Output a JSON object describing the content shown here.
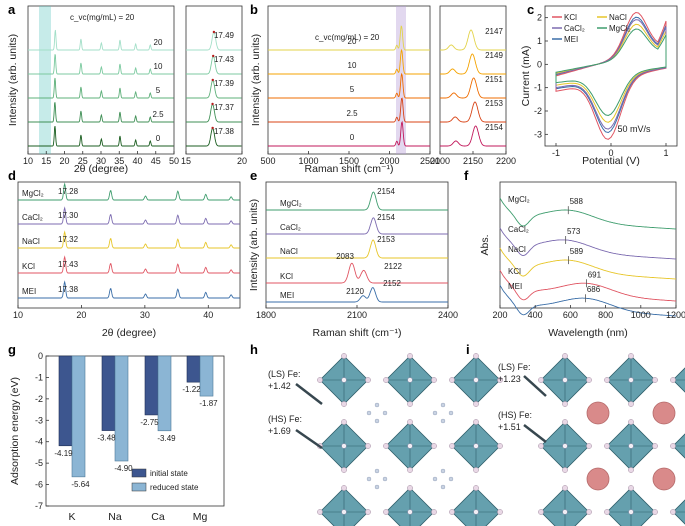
{
  "labels": {
    "a": "a",
    "b": "b",
    "c": "c",
    "d": "d",
    "e": "e",
    "f": "f",
    "g": "g",
    "h": "h",
    "i": "i"
  },
  "colors": {
    "a": [
      "#1b5e20",
      "#3f8f55",
      "#5eb07a",
      "#7ccaa0",
      "#a3dfc8"
    ],
    "b": [
      "#c2185b",
      "#d84315",
      "#ef6c00",
      "#f4a300",
      "#e3d34a"
    ],
    "salt": {
      "MEI": "#3a6ea8",
      "KCl": "#e05663",
      "NaCl": "#e7c62a",
      "CaCl2": "#7c6bb0",
      "MgCl2": "#3f9d6e"
    },
    "g_initial": "#3d568f",
    "g_reduced": "#8bb5d4",
    "octa": "#4a8fa0",
    "metal": "#d98a8a"
  },
  "chart_data": [
    {
      "panel": "a",
      "type": "line",
      "title": "",
      "xlabel": "2θ (degree)",
      "ylabel": "Intensity (arb. units)",
      "xlim": [
        10,
        50
      ],
      "xticks": [
        10,
        15,
        20,
        25,
        30,
        35,
        40,
        45,
        50
      ],
      "legend_title": "c_vc(mg/mL) = 20",
      "series": [
        {
          "name": "0",
          "peaks": [
            17.38,
            24.5,
            30.1,
            35.2,
            39.5,
            43.5
          ]
        },
        {
          "name": "2.5",
          "peaks": [
            17.37,
            24.5,
            30.1,
            35.2,
            39.5,
            43.5
          ]
        },
        {
          "name": "5",
          "peaks": [
            17.39,
            24.5,
            30.1,
            35.2,
            39.5,
            43.5
          ]
        },
        {
          "name": "10",
          "peaks": [
            17.43,
            24.5,
            30.1,
            35.2,
            39.5,
            43.5
          ]
        },
        {
          "name": "20",
          "peaks": [
            17.49,
            24.5,
            30.1,
            35.2,
            39.5,
            43.5
          ]
        }
      ],
      "zoom": {
        "xlim": [
          15,
          20
        ],
        "xticks": [
          15,
          20
        ],
        "peak_labels": [
          "17.38",
          "17.37",
          "17.39",
          "17.43",
          "17.49"
        ]
      }
    },
    {
      "panel": "b",
      "type": "line",
      "xlabel": "Raman shift (cm⁻¹)",
      "ylabel": "Intensity (arb. units)",
      "xlim": [
        500,
        2500
      ],
      "xticks": [
        500,
        1000,
        1500,
        2000,
        2500
      ],
      "legend_title": "c_vc(mg/mL) = 20",
      "series_names": [
        "0",
        "2.5",
        "5",
        "10",
        "20"
      ],
      "zoom": {
        "xlim": [
          2100,
          2200
        ],
        "xticks": [
          2100,
          2150,
          2200
        ],
        "peak_labels": [
          "2154",
          "2153",
          "2151",
          "2149",
          "2147"
        ]
      }
    },
    {
      "panel": "c",
      "type": "line",
      "title": "",
      "xlabel": "Potential (V)",
      "ylabel": "Current (mA)",
      "xlim": [
        -1.2,
        1.2
      ],
      "ylim": [
        -3.5,
        2.5
      ],
      "xticks": [
        -1,
        0,
        1
      ],
      "yticks": [
        -3,
        -2,
        -1,
        0,
        1,
        2
      ],
      "legend": [
        "KCl",
        "NaCl",
        "CaCl₂",
        "MgCl₂",
        "MEI"
      ],
      "annotation": "50 mV/s"
    },
    {
      "panel": "d",
      "type": "line",
      "xlabel": "2θ (degree)",
      "xlim": [
        10,
        45
      ],
      "xticks": [
        10,
        20,
        30,
        40
      ],
      "series": [
        {
          "name": "MgCl₂",
          "label": "17.28"
        },
        {
          "name": "CaCl₂",
          "label": "17.30"
        },
        {
          "name": "NaCl",
          "label": "17.32"
        },
        {
          "name": "KCl",
          "label": "17.43"
        },
        {
          "name": "MEI",
          "label": "17.38"
        }
      ]
    },
    {
      "panel": "e",
      "type": "line",
      "xlabel": "Raman shift (cm⁻¹)",
      "ylabel": "Intensity (arb. units)",
      "xlim": [
        1800,
        2400
      ],
      "xticks": [
        1800,
        2100,
        2400
      ],
      "series": [
        {
          "name": "MgCl₂",
          "peaks": [
            "2154"
          ]
        },
        {
          "name": "CaCl₂",
          "peaks": [
            "2154"
          ]
        },
        {
          "name": "NaCl",
          "peaks": [
            "2153"
          ]
        },
        {
          "name": "KCl",
          "peaks": [
            "2083",
            "2122"
          ]
        },
        {
          "name": "MEI",
          "peaks": [
            "2120",
            "2152"
          ]
        }
      ]
    },
    {
      "panel": "f",
      "type": "line",
      "xlabel": "Wavelength (nm)",
      "ylabel": "Abs.",
      "xlim": [
        200,
        1200
      ],
      "xticks": [
        200,
        400,
        600,
        800,
        1000,
        1200
      ],
      "series": [
        {
          "name": "MgCl₂",
          "peak": "588"
        },
        {
          "name": "CaCl₂",
          "peak": "573"
        },
        {
          "name": "NaCl",
          "peak": "589"
        },
        {
          "name": "KCl",
          "peak": "691"
        },
        {
          "name": "MEI",
          "peak": "686"
        }
      ]
    },
    {
      "panel": "g",
      "type": "bar",
      "ylabel": "Adsorption energy (eV)",
      "ylim": [
        -7,
        0
      ],
      "yticks": [
        0,
        -1,
        -2,
        -3,
        -4,
        -5,
        -6,
        -7
      ],
      "categories": [
        "K",
        "Na",
        "Ca",
        "Mg"
      ],
      "series": [
        {
          "name": "initial state",
          "values": [
            -4.19,
            -3.48,
            -2.75,
            -1.22
          ]
        },
        {
          "name": "reduced state",
          "values": [
            -5.64,
            -4.9,
            -3.49,
            -1.87
          ]
        }
      ],
      "data_labels": {
        "initial": [
          "-4.19",
          "-3.48",
          "-2.75",
          "-1.22"
        ],
        "reduced": [
          "-5.64",
          "-4.90",
          "-3.49",
          "-1.87"
        ]
      },
      "legend": [
        "initial state",
        "reduced state"
      ]
    }
  ],
  "structures": {
    "h": {
      "ls_label": "(LS) Fe:",
      "ls_value": "+1.42",
      "hs_label": "(HS) Fe:",
      "hs_value": "+1.69"
    },
    "i": {
      "ls_label": "(LS) Fe:",
      "ls_value": "+1.23",
      "hs_label": "(HS) Fe:",
      "hs_value": "+1.51"
    }
  }
}
